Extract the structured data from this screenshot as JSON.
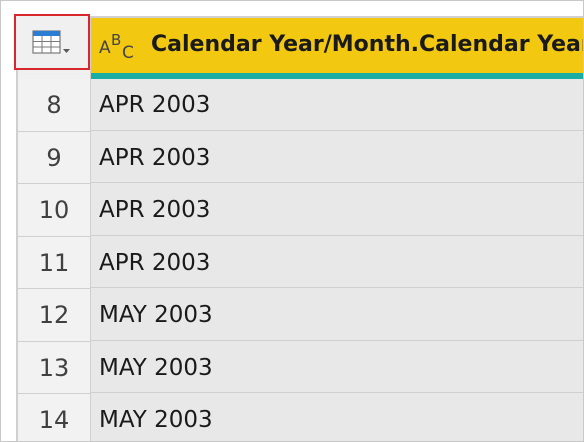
{
  "header": {
    "type_icon": "text-type-abc-icon",
    "table_menu_icon": "table-menu-icon",
    "column_title": "Calendar Year/Month.Calendar Year",
    "colors": {
      "column_header_bg": "#f2c811",
      "quality_bar": "#1aada4",
      "highlight_border": "#d9272e"
    }
  },
  "rows": [
    {
      "num": "8",
      "value": "APR 2003"
    },
    {
      "num": "9",
      "value": "APR 2003"
    },
    {
      "num": "10",
      "value": "APR 2003"
    },
    {
      "num": "11",
      "value": "APR 2003"
    },
    {
      "num": "12",
      "value": "MAY 2003"
    },
    {
      "num": "13",
      "value": "MAY 2003"
    },
    {
      "num": "14",
      "value": "MAY 2003"
    }
  ]
}
